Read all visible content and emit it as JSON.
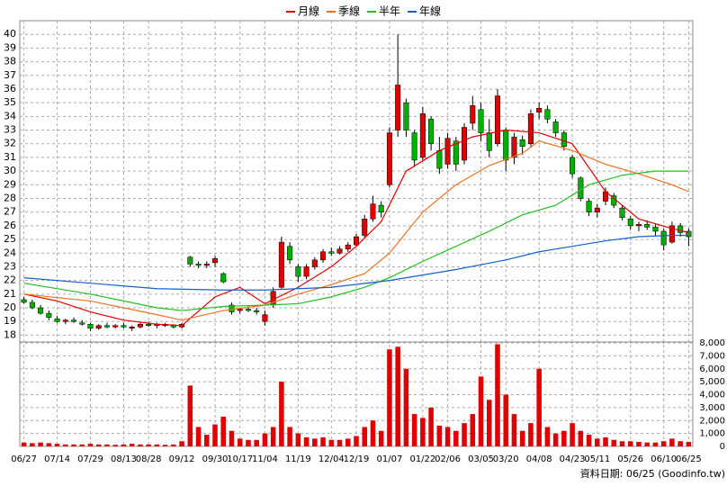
{
  "chart_data": {
    "type": "candlestick",
    "grid": true,
    "legend": "top",
    "up_color": "#e00000",
    "down_color": "#00b000",
    "volume_color": "#e00000",
    "xlim": [
      -0.5,
      80.5
    ],
    "xticks": [
      {
        "value": 0,
        "label": "06/27"
      },
      {
        "value": 4,
        "label": "07/14"
      },
      {
        "value": 8,
        "label": "07/29"
      },
      {
        "value": 12,
        "label": "08/13"
      },
      {
        "value": 15,
        "label": "08/28"
      },
      {
        "value": 19,
        "label": "09/12"
      },
      {
        "value": 23,
        "label": "09/30"
      },
      {
        "value": 26,
        "label": "10/17"
      },
      {
        "value": 29,
        "label": "11/04"
      },
      {
        "value": 33,
        "label": "11/19"
      },
      {
        "value": 37,
        "label": "12/04"
      },
      {
        "value": 40,
        "label": "12/19"
      },
      {
        "value": 44,
        "label": "01/07"
      },
      {
        "value": 48,
        "label": "01/22"
      },
      {
        "value": 51,
        "label": "02/06"
      },
      {
        "value": 55,
        "label": "03/05"
      },
      {
        "value": 58,
        "label": "03/20"
      },
      {
        "value": 62,
        "label": "04/08"
      },
      {
        "value": 66,
        "label": "04/23"
      },
      {
        "value": 69,
        "label": "05/11"
      },
      {
        "value": 73,
        "label": "05/26"
      },
      {
        "value": 77,
        "label": "06/10"
      },
      {
        "value": 80,
        "label": "06/25"
      }
    ],
    "ylim": [
      17.5,
      41
    ],
    "yticks": [
      18,
      19,
      20,
      21,
      22,
      23,
      24,
      25,
      26,
      27,
      28,
      29,
      30,
      31,
      32,
      33,
      34,
      35,
      36,
      37,
      38,
      39,
      40
    ],
    "y2lim": [
      0,
      8000
    ],
    "y2ticks": [
      0,
      {
        "value": 1000,
        "label": "1,000"
      },
      {
        "value": 2000,
        "label": "2,000"
      },
      {
        "value": 3000,
        "label": "3,000"
      },
      {
        "value": 4000,
        "label": "4,000"
      },
      {
        "value": 5000,
        "label": "5,000"
      },
      {
        "value": 6000,
        "label": "6,000"
      },
      {
        "value": 7000,
        "label": "7,000"
      },
      {
        "value": 8000,
        "label": "8,000"
      }
    ],
    "open": [
      20.6,
      20.4,
      20.0,
      19.6,
      19.2,
      19.0,
      19.1,
      18.9,
      18.8,
      18.5,
      18.7,
      18.6,
      18.7,
      18.5,
      18.6,
      18.8,
      18.7,
      18.8,
      18.7,
      18.6,
      23.7,
      23.2,
      23.1,
      23.3,
      22.5,
      20.2,
      19.8,
      19.9,
      19.8,
      19.0,
      20.2,
      21.5,
      24.5,
      23.0,
      22.3,
      23.0,
      23.5,
      24.1,
      24.0,
      24.3,
      24.6,
      25.3,
      26.5,
      27.5,
      29.0,
      33.0,
      35.0,
      32.8,
      31.0,
      33.8,
      31.5,
      30.5,
      32.2,
      30.8,
      33.5,
      34.5,
      32.8,
      32.0,
      33.0,
      31.0,
      32.3,
      32.0,
      34.3,
      34.5,
      33.6,
      32.8,
      31.0,
      29.5,
      27.8,
      27.0,
      27.8,
      28.2,
      27.3,
      26.5,
      26.0,
      26.1,
      25.9,
      25.6,
      24.8,
      26.0,
      25.6
    ],
    "high": [
      20.8,
      20.6,
      20.2,
      19.8,
      19.4,
      19.2,
      19.3,
      19.1,
      18.9,
      18.8,
      18.9,
      18.8,
      18.9,
      18.7,
      18.9,
      19.0,
      18.9,
      18.9,
      18.8,
      18.9,
      23.8,
      23.4,
      23.4,
      23.8,
      22.6,
      20.4,
      20.0,
      20.1,
      20.0,
      19.8,
      21.5,
      25.2,
      24.8,
      23.2,
      23.2,
      23.7,
      24.3,
      24.4,
      24.5,
      24.8,
      25.4,
      26.8,
      28.2,
      27.8,
      33.2,
      40.0,
      35.3,
      33.0,
      34.7,
      34.0,
      32.5,
      32.8,
      32.5,
      33.5,
      35.5,
      35.0,
      33.8,
      36.0,
      33.2,
      32.8,
      32.6,
      34.5,
      35.0,
      34.8,
      33.8,
      33.0,
      31.2,
      29.6,
      28.0,
      27.6,
      28.8,
      28.4,
      27.5,
      26.7,
      26.3,
      26.4,
      26.1,
      25.8,
      26.3,
      26.2,
      25.8
    ],
    "low": [
      20.3,
      19.9,
      19.5,
      19.1,
      18.9,
      18.8,
      18.9,
      18.7,
      18.3,
      18.4,
      18.5,
      18.5,
      18.5,
      18.3,
      18.5,
      18.6,
      18.5,
      18.6,
      18.5,
      18.5,
      23.0,
      22.9,
      22.9,
      23.0,
      21.8,
      19.5,
      19.6,
      19.7,
      19.5,
      18.7,
      20.0,
      21.4,
      23.2,
      21.9,
      22.1,
      22.8,
      23.3,
      23.8,
      23.9,
      24.1,
      24.5,
      25.1,
      26.3,
      26.6,
      28.8,
      32.5,
      32.5,
      30.3,
      30.8,
      31.5,
      29.8,
      30.2,
      30.0,
      30.5,
      33.0,
      32.2,
      31.0,
      31.8,
      30.0,
      30.5,
      31.2,
      31.8,
      33.8,
      33.5,
      32.5,
      31.5,
      29.5,
      27.8,
      26.7,
      26.6,
      27.5,
      27.3,
      26.4,
      25.7,
      25.6,
      25.7,
      25.3,
      24.2,
      24.7,
      25.2,
      24.5
    ],
    "close": [
      20.4,
      20.0,
      19.6,
      19.3,
      19.0,
      19.1,
      19.0,
      18.8,
      18.5,
      18.7,
      18.6,
      18.7,
      18.6,
      18.6,
      18.8,
      18.7,
      18.8,
      18.7,
      18.6,
      18.8,
      23.2,
      23.1,
      23.2,
      23.6,
      21.9,
      19.7,
      19.9,
      19.8,
      19.7,
      19.5,
      21.2,
      24.8,
      23.5,
      22.3,
      23.0,
      23.5,
      24.1,
      24.0,
      24.3,
      24.6,
      25.2,
      26.5,
      27.6,
      27.0,
      32.8,
      36.3,
      33.0,
      30.8,
      34.2,
      32.0,
      30.2,
      32.4,
      30.5,
      33.2,
      34.8,
      32.8,
      31.5,
      35.5,
      30.8,
      32.5,
      31.8,
      34.2,
      34.6,
      33.8,
      32.8,
      31.8,
      29.8,
      28.0,
      27.0,
      27.3,
      28.5,
      27.5,
      26.6,
      26.0,
      26.1,
      25.9,
      25.6,
      24.6,
      26.0,
      25.5,
      25.2
    ],
    "volume": [
      300,
      250,
      300,
      250,
      200,
      150,
      150,
      150,
      200,
      150,
      150,
      120,
      150,
      200,
      150,
      150,
      150,
      120,
      150,
      400,
      4700,
      1500,
      900,
      1700,
      2300,
      1200,
      600,
      500,
      500,
      1000,
      1500,
      5000,
      1500,
      1000,
      700,
      600,
      700,
      500,
      500,
      600,
      800,
      1500,
      2000,
      1200,
      7500,
      7700,
      6000,
      2500,
      2200,
      3000,
      1600,
      1500,
      1200,
      1800,
      2500,
      5400,
      3600,
      7900,
      4000,
      2500,
      1200,
      1800,
      6000,
      1500,
      1000,
      1200,
      1800,
      1200,
      900,
      600,
      700,
      500,
      400,
      400,
      350,
      300,
      300,
      400,
      600,
      400,
      350
    ],
    "series": [
      {
        "name": "月線",
        "color": "#e00000",
        "x": [
          0,
          4,
          8,
          12,
          16,
          19,
          23,
          26,
          29,
          33,
          37,
          40,
          43,
          46,
          50,
          54,
          58,
          62,
          66,
          70,
          74,
          78,
          80
        ],
        "values": [
          21,
          20.5,
          19.7,
          19.1,
          18.8,
          18.7,
          20.8,
          21.5,
          20.3,
          21.5,
          23,
          24.5,
          26.3,
          30,
          31.5,
          32.5,
          33,
          32.8,
          32,
          28.5,
          26.5,
          25.8,
          25.5
        ]
      },
      {
        "name": "季線",
        "color": "#f07020",
        "x": [
          0,
          8,
          16,
          19,
          24,
          29,
          33,
          37,
          41,
          44,
          48,
          52,
          56,
          60,
          62,
          66,
          70,
          74,
          78,
          80
        ],
        "values": [
          21,
          20.5,
          19.5,
          19.1,
          19.8,
          20.2,
          21,
          21.7,
          22.5,
          24,
          27,
          29,
          30.4,
          31.3,
          32.2,
          31.5,
          30.5,
          29.8,
          29,
          28.5
        ]
      },
      {
        "name": "半年",
        "color": "#20c020",
        "x": [
          0,
          8,
          16,
          19,
          24,
          29,
          33,
          37,
          41,
          44,
          48,
          52,
          56,
          60,
          64,
          68,
          72,
          76,
          80
        ],
        "values": [
          21.8,
          21,
          20,
          19.8,
          20.1,
          20.2,
          20.3,
          20.8,
          21.5,
          22.2,
          23.4,
          24.5,
          25.6,
          26.8,
          27.5,
          29,
          29.7,
          30,
          30
        ]
      },
      {
        "name": "年線",
        "color": "#1060d0",
        "x": [
          0,
          8,
          16,
          24,
          29,
          37,
          44,
          52,
          58,
          62,
          66,
          70,
          74,
          78,
          80
        ],
        "values": [
          22.2,
          21.8,
          21.4,
          21.3,
          21.3,
          21.5,
          22,
          22.8,
          23.5,
          24.1,
          24.5,
          24.9,
          25.2,
          25.3,
          25.3
        ]
      }
    ],
    "footer": "資料日期: 06/25 (Goodinfo.tw)"
  }
}
